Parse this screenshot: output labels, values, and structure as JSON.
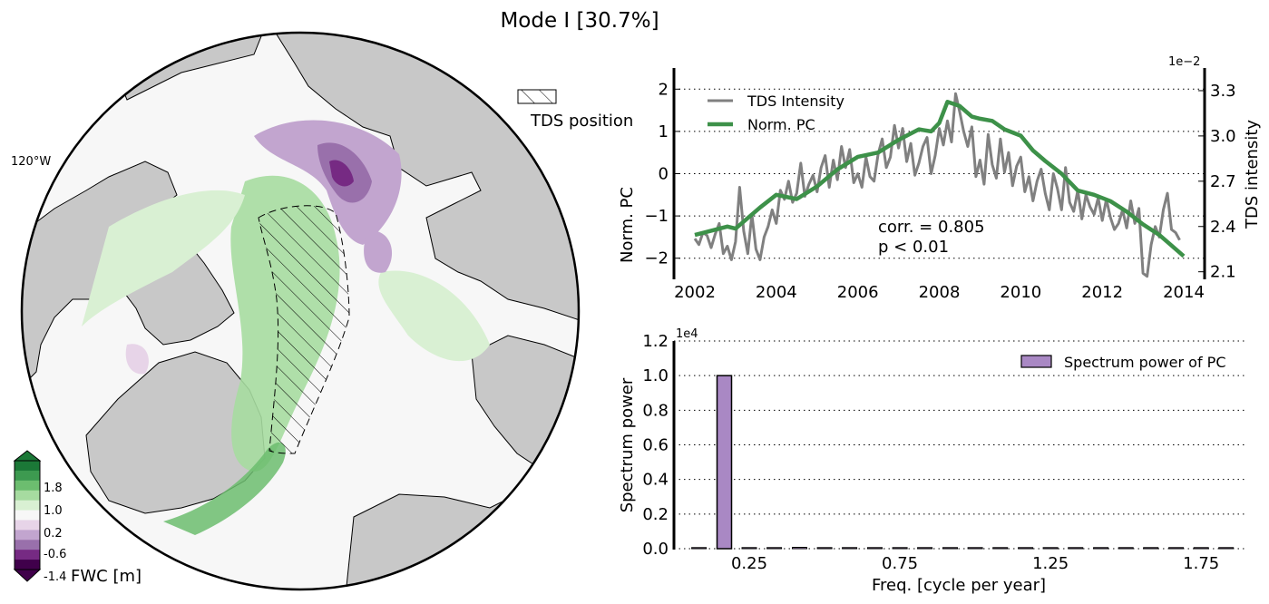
{
  "figure": {
    "title": "Mode I  [30.7%]"
  },
  "map": {
    "longitude_label": "120°W",
    "legend_label": "TDS position",
    "colorbar": {
      "label": "FWC [m]",
      "ticks": [
        "1.8",
        "1.0",
        "0.2",
        "-0.6",
        "-1.4"
      ],
      "colors": [
        "#1b7837",
        "#3d9a50",
        "#6cbd6f",
        "#a6dba0",
        "#d9f0d3",
        "#f7f7f7",
        "#e7d4e8",
        "#c2a5cf",
        "#9970ab",
        "#762a83",
        "#40004b"
      ]
    },
    "colors": {
      "land": "#c8c8c8",
      "ocean": "#f7f7f7",
      "positive": "#a6dba0",
      "negative": "#c2a5cf"
    }
  },
  "chart_data": [
    {
      "type": "line",
      "title": "",
      "xlabel": "",
      "ylabel": "Norm. PC",
      "ylabel_right": "TDS intensity",
      "right_axis_multiplier": "1e−2",
      "xlim": [
        2002,
        2014
      ],
      "ylim": [
        -2.5,
        2.5
      ],
      "ylim_right": [
        2.05,
        3.45
      ],
      "x_ticks": [
        "2002",
        "2004",
        "2006",
        "2008",
        "2010",
        "2012",
        "2014"
      ],
      "y_ticks": [
        "2",
        "1",
        "0",
        "−1",
        "−2"
      ],
      "y_ticks_right": [
        "3.3",
        "3.0",
        "2.7",
        "2.4",
        "2.1"
      ],
      "grid": "horizontal dotted",
      "legend_placement": "top-left",
      "annotations": [
        "corr. = 0.805",
        "p < 0.01"
      ],
      "series": [
        {
          "name": "TDS Intensity",
          "color": "#808080",
          "axis": "right",
          "x": [
            2002.0,
            2002.1,
            2002.2,
            2002.3,
            2002.4,
            2002.5,
            2002.6,
            2002.7,
            2002.8,
            2002.9,
            2003.0,
            2003.1,
            2003.2,
            2003.3,
            2003.4,
            2003.5,
            2003.6,
            2003.7,
            2003.8,
            2003.9,
            2004.0,
            2004.1,
            2004.2,
            2004.3,
            2004.4,
            2004.5,
            2004.6,
            2004.7,
            2004.8,
            2004.9,
            2005.0,
            2005.1,
            2005.2,
            2005.3,
            2005.4,
            2005.5,
            2005.6,
            2005.7,
            2005.8,
            2005.9,
            2006.0,
            2006.1,
            2006.2,
            2006.3,
            2006.4,
            2006.5,
            2006.6,
            2006.7,
            2006.8,
            2006.9,
            2007.0,
            2007.1,
            2007.2,
            2007.3,
            2007.4,
            2007.5,
            2007.6,
            2007.7,
            2007.8,
            2007.9,
            2008.0,
            2008.1,
            2008.2,
            2008.3,
            2008.4,
            2008.5,
            2008.6,
            2008.7,
            2008.8,
            2008.9,
            2009.0,
            2009.1,
            2009.2,
            2009.3,
            2009.4,
            2009.5,
            2009.6,
            2009.7,
            2009.8,
            2009.9,
            2010.0,
            2010.1,
            2010.2,
            2010.3,
            2010.4,
            2010.5,
            2010.6,
            2010.7,
            2010.8,
            2010.9,
            2011.0,
            2011.1,
            2011.2,
            2011.3,
            2011.4,
            2011.5,
            2011.6,
            2011.7,
            2011.8,
            2011.9,
            2012.0,
            2012.1,
            2012.2,
            2012.3,
            2012.4,
            2012.5,
            2012.6,
            2012.7,
            2012.8,
            2012.9,
            2013.0,
            2013.1,
            2013.2,
            2013.3,
            2013.4,
            2013.5,
            2013.6,
            2013.7,
            2013.8,
            2013.9
          ],
          "y": [
            2.32,
            2.28,
            2.36,
            2.34,
            2.26,
            2.35,
            2.42,
            2.22,
            2.27,
            2.18,
            2.3,
            2.66,
            2.37,
            2.22,
            2.48,
            2.25,
            2.18,
            2.33,
            2.4,
            2.51,
            2.42,
            2.64,
            2.58,
            2.7,
            2.56,
            2.62,
            2.82,
            2.6,
            2.68,
            2.74,
            2.63,
            2.79,
            2.87,
            2.66,
            2.84,
            2.71,
            2.93,
            2.79,
            2.91,
            2.69,
            2.75,
            2.66,
            2.86,
            2.73,
            2.7,
            2.88,
            2.98,
            2.79,
            2.86,
            3.07,
            2.92,
            3.05,
            2.83,
            2.95,
            2.74,
            2.82,
            2.93,
            2.99,
            2.75,
            2.87,
            3.05,
            2.94,
            3.1,
            2.96,
            3.28,
            3.16,
            3.03,
            2.93,
            3.06,
            2.73,
            2.84,
            2.68,
            3.01,
            2.81,
            2.72,
            2.98,
            2.76,
            2.89,
            2.67,
            2.8,
            2.86,
            2.63,
            2.73,
            2.57,
            2.7,
            2.78,
            2.62,
            2.51,
            2.75,
            2.65,
            2.51,
            2.79,
            2.56,
            2.5,
            2.64,
            2.45,
            2.61,
            2.53,
            2.48,
            2.59,
            2.44,
            2.58,
            2.46,
            2.38,
            2.42,
            2.51,
            2.39,
            2.57,
            2.42,
            2.52,
            2.09,
            2.07,
            2.28,
            2.4,
            2.33,
            2.51,
            2.62,
            2.38,
            2.36,
            2.31
          ]
        },
        {
          "name": "Norm. PC",
          "color": "#3d9149",
          "axis": "left",
          "x": [
            2002.0,
            2002.4,
            2002.8,
            2003.0,
            2003.3,
            2003.6,
            2004.0,
            2004.5,
            2005.0,
            2005.5,
            2006.0,
            2006.5,
            2007.0,
            2007.5,
            2007.8,
            2008.0,
            2008.2,
            2008.5,
            2008.8,
            2009.0,
            2009.3,
            2009.6,
            2010.0,
            2010.3,
            2010.6,
            2011.0,
            2011.4,
            2011.8,
            2012.2,
            2012.6,
            2013.0,
            2013.4,
            2013.7,
            2014.0
          ],
          "y": [
            -1.45,
            -1.35,
            -1.25,
            -1.3,
            -1.05,
            -0.8,
            -0.5,
            -0.6,
            -0.3,
            0.1,
            0.4,
            0.5,
            0.8,
            1.05,
            1.0,
            1.2,
            1.7,
            1.6,
            1.35,
            1.3,
            1.25,
            1.05,
            0.9,
            0.55,
            0.3,
            0.0,
            -0.4,
            -0.5,
            -0.65,
            -0.9,
            -1.2,
            -1.45,
            -1.7,
            -1.95
          ]
        }
      ]
    },
    {
      "type": "bar",
      "title": "",
      "xlabel": "Freq. [cycle per year]",
      "ylabel": "Spectrum power",
      "y_multiplier": "1e4",
      "xlim": [
        0.0,
        1.9
      ],
      "ylim": [
        0.0,
        1.2
      ],
      "x_ticks": [
        "0.25",
        "0.75",
        "1.25",
        "1.75"
      ],
      "y_ticks": [
        "0.0",
        "0.2",
        "0.4",
        "0.6",
        "0.8",
        "1.0",
        "1.2"
      ],
      "grid": "horizontal dotted",
      "legend_placement": "top-right",
      "series": [
        {
          "name": "Spectrum power of PC",
          "color": "#a988c4",
          "x": [
            0.083,
            0.167,
            0.25,
            0.333,
            0.417,
            0.5,
            0.583,
            0.667,
            0.75,
            0.833,
            0.917,
            1.0,
            1.083,
            1.167,
            1.25,
            1.333,
            1.417,
            1.5,
            1.583,
            1.667,
            1.75,
            1.833
          ],
          "values": [
            0.001,
            1.0,
            0.006,
            0.002,
            0.008,
            0.002,
            0.002,
            0.001,
            0.001,
            0.001,
            0.001,
            0.001,
            0.001,
            0.001,
            0.001,
            0.001,
            0.001,
            0.001,
            0.001,
            0.001,
            0.001,
            0.001
          ]
        }
      ]
    }
  ]
}
